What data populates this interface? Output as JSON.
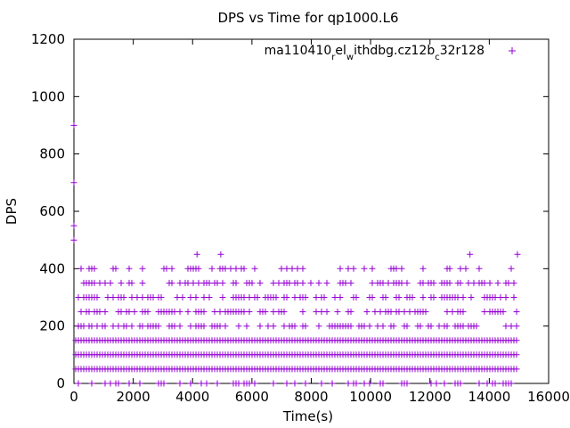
{
  "chart_data": {
    "type": "scatter",
    "title": "DPS vs Time for qp1000.L6",
    "xlabel": "Time(s)",
    "ylabel": "DPS",
    "xlim": [
      0,
      16000
    ],
    "ylim": [
      0,
      1200
    ],
    "xticks": [
      0,
      2000,
      4000,
      6000,
      8000,
      10000,
      12000,
      14000,
      16000
    ],
    "yticks": [
      0,
      200,
      400,
      600,
      800,
      1000,
      1200
    ],
    "xtick_labels": [
      "0",
      "2000",
      "4000",
      "6000",
      "8000",
      "10000",
      "12000",
      "14000",
      "16000"
    ],
    "ytick_labels": [
      "0",
      "200",
      "400",
      "600",
      "800",
      "1000",
      "1200"
    ],
    "grid": false,
    "legend_position": "top-right",
    "color": "#9400d3",
    "marker": "plus",
    "series": [
      {
        "name": "ma110410_rel_withdbg.cz12b_c32r128",
        "name_parts": [
          "ma110410",
          "r",
          "el",
          "w",
          "ithdbg.cz12b",
          "c",
          "32r128"
        ],
        "dense_bands": [
          {
            "y": 50,
            "x_range": [
              0,
              15000
            ],
            "density": 1.0
          },
          {
            "y": 100,
            "x_range": [
              0,
              15000
            ],
            "density": 1.0
          },
          {
            "y": 150,
            "x_range": [
              0,
              15000
            ],
            "density": 1.0
          },
          {
            "y": 0,
            "x_range": [
              0,
              15000
            ],
            "density": 0.35
          }
        ],
        "sparse_bands": [
          {
            "y": 200,
            "x_range": [
              0,
              15000
            ],
            "density": 0.55
          },
          {
            "y": 250,
            "x_range": [
              0,
              15000
            ],
            "density": 0.45
          },
          {
            "y": 300,
            "x_range": [
              0,
              15000
            ],
            "density": 0.55
          },
          {
            "y": 350,
            "x_range": [
              0,
              15000
            ],
            "density": 0.45
          },
          {
            "y": 400,
            "x_range": [
              0,
              15000
            ],
            "density": 0.28
          }
        ],
        "points": [
          [
            0,
            900
          ],
          [
            0,
            700
          ],
          [
            0,
            550
          ],
          [
            0,
            500
          ],
          [
            4150,
            450
          ],
          [
            4950,
            450
          ],
          [
            13350,
            450
          ],
          [
            14950,
            450
          ]
        ]
      }
    ]
  }
}
